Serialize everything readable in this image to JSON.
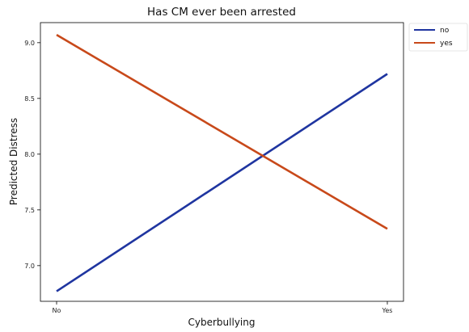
{
  "chart_data": {
    "type": "line",
    "title": "Has CM ever been arrested",
    "xlabel": "Cyberbullying",
    "ylabel": "Predicted Distress",
    "categories": [
      "No",
      "Yes"
    ],
    "ylim": [
      6.68,
      9.18
    ],
    "yticks": [
      7.0,
      7.5,
      8.0,
      8.5,
      9.0
    ],
    "ytick_labels": [
      "7.0",
      "7.5",
      "8.0",
      "8.5",
      "9.0"
    ],
    "grid": false,
    "legend_placement": "outside-top-right",
    "series": [
      {
        "name": "no",
        "color": "#1f35a0",
        "values": [
          6.77,
          8.72
        ]
      },
      {
        "name": "yes",
        "color": "#c8491a",
        "values": [
          9.07,
          7.33
        ]
      }
    ]
  }
}
